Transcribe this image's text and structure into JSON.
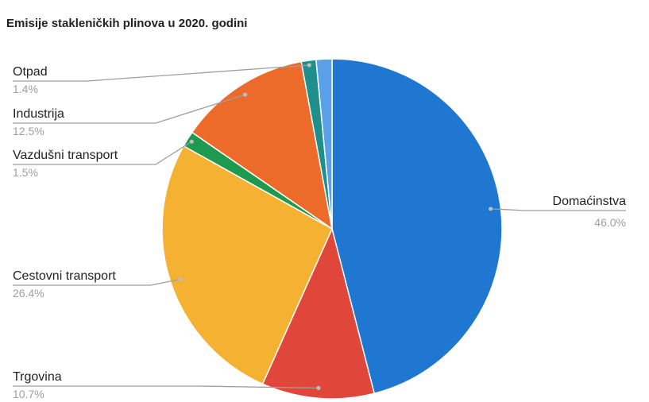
{
  "chart_data": {
    "type": "pie",
    "title": "Emisije stakleničkih plinova u 2020. godini",
    "slices": [
      {
        "label": "Domaćinstva",
        "value": 46.0,
        "display": "46.0%",
        "color": "#1f77d2"
      },
      {
        "label": "Trgovina",
        "value": 10.7,
        "display": "10.7%",
        "color": "#e0463a"
      },
      {
        "label": "Cestovni transport",
        "value": 26.4,
        "display": "26.4%",
        "color": "#f5b232"
      },
      {
        "label": "Vazdušni transport",
        "value": 1.5,
        "display": "1.5%",
        "color": "#1e9a50"
      },
      {
        "label": "Industrija",
        "value": 12.5,
        "display": "12.5%",
        "color": "#ec6a2a"
      },
      {
        "label": "Otpad",
        "value": 1.4,
        "display": "1.4%",
        "color": "#1e8f8a"
      },
      {
        "label": "",
        "value": 1.5,
        "display": "",
        "color": "#5aa0e8"
      }
    ],
    "start_angle_deg": 0,
    "direction": "clockwise",
    "legend": "none"
  }
}
